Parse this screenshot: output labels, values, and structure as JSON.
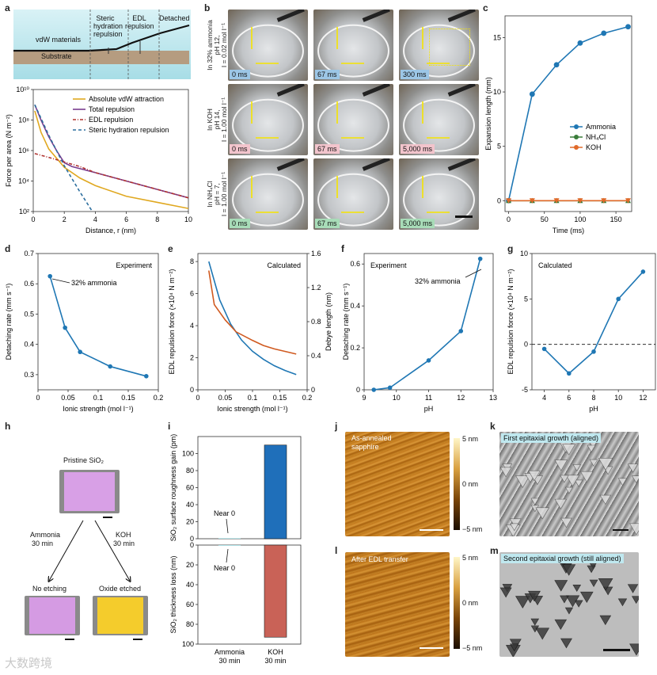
{
  "panels": {
    "a": "a",
    "b": "b",
    "c": "c",
    "d": "d",
    "e": "e",
    "f": "f",
    "g": "g",
    "h": "h",
    "i": "i",
    "j": "j",
    "k": "k",
    "l": "l",
    "m": "m"
  },
  "panel_a": {
    "schematic": {
      "steric": "Steric hydration repulsion",
      "edl": "EDL repulsion",
      "detached": "Detached",
      "vdw": "vdW materials",
      "substrate": "Substrate"
    }
  },
  "watermark": "大数跨境",
  "colors": {
    "gold": "#e0a820",
    "purple": "#7a3d8f",
    "red_dashdot": "#b0322e",
    "blue_dash": "#2c6e9e",
    "blue": "#1f77b4",
    "orange": "#d05a20",
    "green": "#3a7d3a",
    "koh_orange": "#e06a2a",
    "bar_blue": "#1f6fba",
    "bar_red": "#c96257",
    "cyan_bg": "#bfe8ef"
  },
  "chart_data": [
    {
      "id": "a",
      "type": "line",
      "xlabel": "Distance, r (nm)",
      "ylabel": "Force per area (N m⁻²)",
      "xlim": [
        0,
        10
      ],
      "ylim_log10": [
        2,
        10
      ],
      "xticks": [
        0,
        2,
        4,
        6,
        8,
        10
      ],
      "yticks": [
        "10²",
        "10⁴",
        "10⁶",
        "10⁸",
        "10¹⁰"
      ],
      "legend": [
        "Absolute vdW attraction",
        "Total repulsion",
        "EDL repulsion",
        "Steric hydration repulsion"
      ],
      "series": [
        {
          "name": "Absolute vdW attraction",
          "x": [
            0.1,
            0.5,
            1,
            2,
            3,
            4,
            6,
            8,
            10
          ],
          "log10y": [
            8.6,
            7.2,
            6.1,
            4.9,
            4.2,
            3.7,
            3.0,
            2.6,
            2.2
          ]
        },
        {
          "name": "Total repulsion",
          "x": [
            0.1,
            0.5,
            1,
            1.5,
            2,
            2.5,
            4,
            6,
            8,
            10
          ],
          "log10y": [
            9.0,
            8.0,
            6.9,
            6.0,
            5.2,
            4.95,
            4.55,
            4.0,
            3.45,
            2.9
          ]
        },
        {
          "name": "EDL repulsion",
          "x": [
            0.1,
            1,
            2,
            3,
            4,
            6,
            8,
            10
          ],
          "log10y": [
            5.8,
            5.55,
            5.25,
            4.95,
            4.55,
            4.0,
            3.45,
            2.9
          ]
        },
        {
          "name": "Steric hydration repulsion",
          "x": [
            0.1,
            1,
            2,
            3,
            3.5,
            4
          ],
          "log10y": [
            9.0,
            7.0,
            5.0,
            3.3,
            2.5,
            1.7
          ]
        }
      ]
    },
    {
      "id": "c",
      "type": "line",
      "xlabel": "Time (ms)",
      "ylabel": "Expansion length (mm)",
      "xlim": [
        0,
        170
      ],
      "ylim": [
        0,
        17
      ],
      "xticks": [
        0,
        50,
        100,
        150
      ],
      "yticks": [
        0,
        5,
        10,
        15
      ],
      "series": [
        {
          "name": "Ammonia",
          "x": [
            0,
            33,
            67,
            100,
            133,
            167
          ],
          "y": [
            0,
            9.8,
            12.5,
            14.5,
            15.4,
            16.0
          ]
        },
        {
          "name": "NH₄Cl",
          "x": [
            0,
            33,
            67,
            100,
            133,
            167
          ],
          "y": [
            0,
            0,
            0,
            0,
            0,
            0
          ]
        },
        {
          "name": "KOH",
          "x": [
            0,
            33,
            67,
            100,
            133,
            167
          ],
          "y": [
            0,
            0,
            0,
            0,
            0,
            0
          ]
        }
      ]
    },
    {
      "id": "d",
      "type": "line",
      "xlabel": "Ionic strength (mol l⁻¹)",
      "ylabel": "Detaching rate (mm s⁻¹)",
      "annotation": "Experiment",
      "callout": "32% ammonia",
      "xlim": [
        0,
        0.2
      ],
      "ylim": [
        0.25,
        0.7
      ],
      "xticks": [
        0,
        0.05,
        0.1,
        0.15,
        0.2
      ],
      "yticks": [
        0.3,
        0.4,
        0.5,
        0.6,
        0.7
      ],
      "series": [
        {
          "name": "rate",
          "x": [
            0.02,
            0.045,
            0.07,
            0.12,
            0.18
          ],
          "y": [
            0.625,
            0.455,
            0.375,
            0.327,
            0.295
          ]
        }
      ]
    },
    {
      "id": "e",
      "type": "line",
      "xlabel": "Ionic strength (mol l⁻¹)",
      "ylabel": "EDL repulsion force (×10⁴ N m⁻²)",
      "ylabel2": "Debye length (nm)",
      "annotation": "Calculated",
      "xlim": [
        0,
        0.2
      ],
      "ylim": [
        0,
        8.5
      ],
      "ylim2": [
        0,
        1.6
      ],
      "xticks": [
        0,
        0.05,
        0.1,
        0.15,
        0.2
      ],
      "yticks": [
        0,
        2,
        4,
        6,
        8
      ],
      "yticks2": [
        0,
        0.4,
        0.8,
        1.2,
        1.6
      ],
      "series": [
        {
          "name": "EDL repulsion force",
          "x": [
            0.02,
            0.04,
            0.06,
            0.08,
            0.1,
            0.12,
            0.14,
            0.16,
            0.18
          ],
          "y": [
            8.0,
            5.6,
            4.1,
            3.1,
            2.4,
            1.9,
            1.5,
            1.2,
            0.95
          ]
        },
        {
          "name": "Debye length",
          "x": [
            0.02,
            0.03,
            0.05,
            0.07,
            0.1,
            0.12,
            0.14,
            0.16,
            0.18
          ],
          "y2": [
            1.4,
            1.0,
            0.82,
            0.68,
            0.58,
            0.52,
            0.48,
            0.45,
            0.42
          ]
        }
      ]
    },
    {
      "id": "f",
      "type": "line",
      "xlabel": "pH",
      "ylabel": "Detaching rate (mm s⁻¹)",
      "annotation": "Experiment",
      "callout": "32% ammonia",
      "xlim": [
        9,
        13
      ],
      "ylim": [
        0,
        0.65
      ],
      "xticks": [
        9,
        10,
        11,
        12,
        13
      ],
      "yticks": [
        0,
        0.2,
        0.4,
        0.6
      ],
      "series": [
        {
          "name": "rate",
          "x": [
            9.3,
            9.8,
            11,
            12,
            12.6
          ],
          "y": [
            0.0,
            0.01,
            0.14,
            0.28,
            0.625
          ]
        }
      ]
    },
    {
      "id": "g",
      "type": "line",
      "xlabel": "pH",
      "ylabel": "EDL repulsion force (×10⁴ N m⁻²)",
      "annotation": "Calculated",
      "xlim": [
        3,
        13
      ],
      "ylim": [
        -5,
        10
      ],
      "xticks": [
        4,
        6,
        8,
        10,
        12
      ],
      "yticks": [
        -5,
        0,
        5,
        10
      ],
      "series": [
        {
          "name": "force",
          "x": [
            4,
            6,
            8,
            10,
            12
          ],
          "y": [
            -0.5,
            -3.2,
            -0.8,
            5.0,
            8.0
          ]
        }
      ]
    },
    {
      "id": "i",
      "type": "bar",
      "categories": [
        "Ammonia\n30 min",
        "KOH\n30 min"
      ],
      "top": {
        "ylabel": "SiO₂ surface roughness gain (pm)",
        "ylim": [
          0,
          120
        ],
        "yticks": [
          0,
          20,
          40,
          60,
          80,
          100
        ],
        "values": [
          0.5,
          110
        ],
        "note": "Near 0"
      },
      "bottom": {
        "ylabel": "SiO₂ thickness loss (nm)",
        "ylim": [
          0,
          100
        ],
        "yticks": [
          0,
          20,
          40,
          60,
          80,
          100
        ],
        "values": [
          0.5,
          93
        ],
        "note": "Near 0"
      }
    }
  ],
  "panel_b": {
    "rows": [
      {
        "label1": "In 32% ammonia",
        "label2": "pH 12,",
        "label3": "I = 0.02 mol l⁻¹",
        "times": [
          "0 ms",
          "67 ms",
          "300 ms"
        ]
      },
      {
        "label1": "In KOH",
        "label2": "pH 14,",
        "label3": "I = 1.00 mol l⁻¹",
        "times": [
          "0 ms",
          "67 ms",
          "5,000 ms"
        ]
      },
      {
        "label1": "In NH₄Cl",
        "label2": "pH = 7,",
        "label3": "I = 1.00 mol l⁻¹",
        "times": [
          "0 ms",
          "67 ms",
          "5,000 ms"
        ]
      }
    ]
  },
  "panel_h": {
    "pristine": "Pristine SiO₂",
    "ammonia": "Ammonia",
    "ammonia_time": "30 min",
    "koh": "KOH",
    "koh_time": "30 min",
    "no_etch": "No etching",
    "etched": "Oxide etched"
  },
  "panel_j": {
    "label1": "As-annealed",
    "label2": "sapphire",
    "scale": [
      "5 nm",
      "0 nm",
      "−5 nm"
    ]
  },
  "panel_l": {
    "label": "After EDL transfer",
    "scale": [
      "5 nm",
      "0 nm",
      "−5 nm"
    ]
  },
  "panel_k": {
    "label": "First epitaxial growth (aligned)"
  },
  "panel_m": {
    "label": "Second epitaxial growth (still aligned)"
  }
}
